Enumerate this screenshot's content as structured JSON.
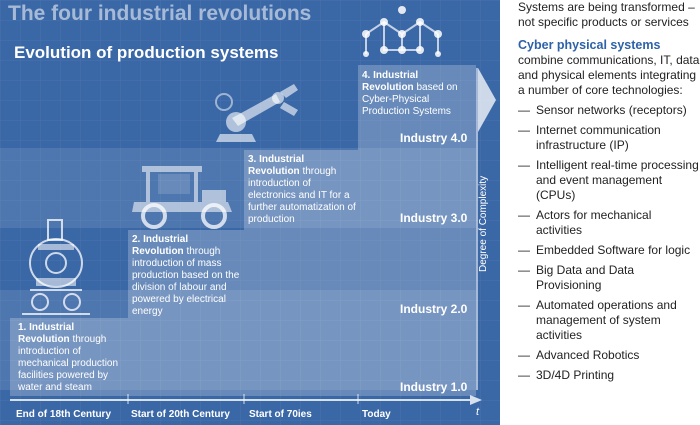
{
  "diagram": {
    "title": "The four industrial revolutions",
    "subtitle": "Evolution of production systems",
    "revolutions": [
      {
        "heading": "1. Industrial Revolution",
        "body": " through introduction of mechanical production facilities powered by water and steam",
        "level": "Industry 1.0",
        "era": "End of 18th Century"
      },
      {
        "heading": "2. Industrial Revolution",
        "body": " through introduction of mass production based on the division of labour and powered by electrical energy",
        "level": "Industry 2.0",
        "era": "Start of 20th Century"
      },
      {
        "heading": "3. Industrial Revolution",
        "body": " through introduction of electronics and IT for a further automatization of production",
        "level": "Industry 3.0",
        "era": "Start of 70ies"
      },
      {
        "heading": "4. Industrial Revolution",
        "body": " based on Cyber-Physical Production Systems",
        "level": "Industry 4.0",
        "era": "Today"
      }
    ],
    "y_axis_label": "Degree of Complexity",
    "x_axis_label": "t",
    "colors": {
      "background": "#3a67a6",
      "accent": "#2e62a8"
    }
  },
  "sidebar": {
    "intro": "Systems are being transformed – not specific products or services",
    "cps_title": "Cyber physical systems",
    "cps_text": "combine communications, IT, data and physical elements integrating a number of core technologies:",
    "bullet_marker": "—",
    "items": [
      "Sensor networks (receptors)",
      "Internet communication infrastructure (IP)",
      "Intelligent real-time processing and event management (CPUs)",
      "Actors for mechanical activities",
      "Embedded Software for logic",
      "Big Data and Data Provisioning",
      "Automated operations and management of system activities",
      "Advanced Robotics",
      "3D/4D Printing"
    ]
  }
}
